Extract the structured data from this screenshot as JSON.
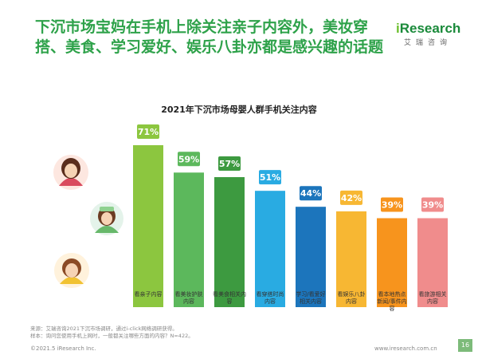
{
  "headline": "下沉市场宝妈在手机上除关注亲子内容外，美妆穿搭、美食、学习爱好、娱乐八卦亦都是感兴趣的话题",
  "brand": {
    "name_prefix": "i",
    "name_rest": "Research",
    "sub": "艾瑞咨询"
  },
  "chart_data": {
    "type": "bar",
    "title": "2021年下沉市场母婴人群手机关注内容",
    "categories": [
      "看亲子内容",
      "看美妆护肤内容",
      "看美食相关内容",
      "看穿搭时尚内容",
      "学习/看爱好相关内容",
      "看娱乐八卦内容",
      "看本地热点新闻/事件内容",
      "看旅游相关内容"
    ],
    "category_lines": [
      [
        "看亲子内容"
      ],
      [
        "看美妆护肤",
        "内容"
      ],
      [
        "看美食相关内",
        "容"
      ],
      [
        "看穿搭时尚",
        "内容"
      ],
      [
        "学习/看爱好",
        "相关内容"
      ],
      [
        "看娱乐八卦",
        "内容"
      ],
      [
        "看本地热点",
        "新闻/事件内",
        "容"
      ],
      [
        "看旅游相关",
        "内容"
      ]
    ],
    "values": [
      71,
      59,
      57,
      51,
      44,
      42,
      39,
      39
    ],
    "labels": [
      "71%",
      "59%",
      "57%",
      "51%",
      "44%",
      "42%",
      "39%",
      "39%"
    ],
    "colors": [
      "#8cc63f",
      "#5cb85c",
      "#3d9a40",
      "#29abe2",
      "#1c75bc",
      "#f7b733",
      "#f7941d",
      "#f08c8c"
    ],
    "ylim": [
      0,
      80
    ],
    "grid": false
  },
  "footnote": {
    "line1": "来源：艾瑞咨询2021下沉市场调研，通过i-click网络调研获得。",
    "line2": "样本：询问您使用手机上网时，一般都关注哪些方面的内容？N=422。"
  },
  "copyright": "©2021.5 iResearch Inc.",
  "website": "www.iresearch.com.cn",
  "page_number": "16"
}
